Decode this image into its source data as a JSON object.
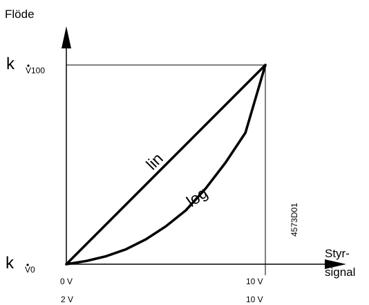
{
  "chart_data": {
    "type": "line",
    "title": "",
    "ylabel": "Flöde",
    "xlabel_lines": [
      "Styr-",
      "signal"
    ],
    "x_tick_rows": [
      [
        "0 V",
        "10 V"
      ],
      [
        "2 V",
        "10 V"
      ]
    ],
    "y_ticks": [
      {
        "k": "k",
        "sub": "V0"
      },
      {
        "k": "k",
        "sub": "V100"
      }
    ],
    "xlim": [
      0,
      10
    ],
    "ylim": [
      0,
      1
    ],
    "series": [
      {
        "name": "lin",
        "x": [
          0,
          10
        ],
        "y": [
          0,
          1
        ]
      },
      {
        "name": "log",
        "x": [
          0,
          1,
          2,
          3,
          4,
          5,
          6,
          7,
          8,
          9,
          10
        ],
        "y": [
          0,
          0.016,
          0.04,
          0.075,
          0.125,
          0.19,
          0.27,
          0.38,
          0.51,
          0.66,
          1.0
        ]
      }
    ],
    "figure_id": "4573D01",
    "grid": false,
    "colors": {
      "ink": "#000000",
      "background": "#ffffff"
    }
  }
}
